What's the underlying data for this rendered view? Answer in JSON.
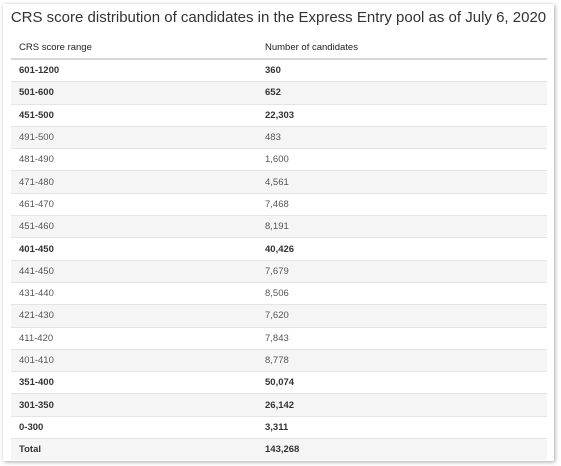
{
  "title": "CRS score distribution of candidates in the Express Entry pool as of July 6, 2020",
  "headers": {
    "range": "CRS score range",
    "count": "Number of candidates"
  },
  "rows": [
    {
      "range": "601-1200",
      "count": "360",
      "bold": true
    },
    {
      "range": "501-600",
      "count": "652",
      "bold": true
    },
    {
      "range": "451-500",
      "count": "22,303",
      "bold": true
    },
    {
      "range": "491-500",
      "count": "483",
      "bold": false
    },
    {
      "range": "481-490",
      "count": "1,600",
      "bold": false
    },
    {
      "range": "471-480",
      "count": "4,561",
      "bold": false
    },
    {
      "range": "461-470",
      "count": "7,468",
      "bold": false
    },
    {
      "range": "451-460",
      "count": "8,191",
      "bold": false
    },
    {
      "range": "401-450",
      "count": "40,426",
      "bold": true
    },
    {
      "range": "441-450",
      "count": "7,679",
      "bold": false
    },
    {
      "range": "431-440",
      "count": "8,506",
      "bold": false
    },
    {
      "range": "421-430",
      "count": "7,620",
      "bold": false
    },
    {
      "range": "411-420",
      "count": "7,843",
      "bold": false
    },
    {
      "range": "401-410",
      "count": "8,778",
      "bold": false
    },
    {
      "range": "351-400",
      "count": "50,074",
      "bold": true
    },
    {
      "range": "301-350",
      "count": "26,142",
      "bold": true
    },
    {
      "range": "0-300",
      "count": "3,311",
      "bold": true
    },
    {
      "range": "Total",
      "count": "143,268",
      "bold": true
    }
  ]
}
